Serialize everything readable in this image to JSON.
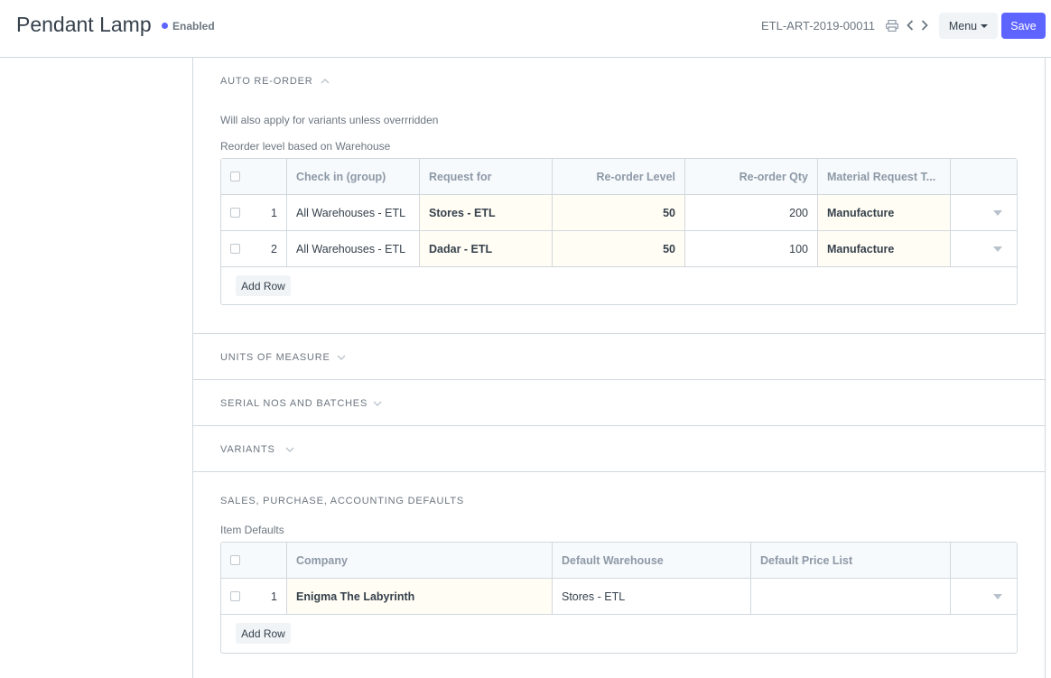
{
  "header": {
    "title": "Pendant Lamp",
    "status": "Enabled",
    "status_color": "#5e64ff",
    "doc_id": "ETL-ART-2019-00011",
    "menu_label": "Menu",
    "save_label": "Save",
    "save_color": "#5e64ff",
    "icons": [
      "printer-icon",
      "chevron-left-icon",
      "chevron-right-icon"
    ]
  },
  "auto_reorder": {
    "section_title": "AUTO RE-ORDER",
    "expanded": true,
    "note": "Will also apply for variants unless overrridden",
    "table_label": "Reorder level based on Warehouse",
    "columns": [
      "Check in (group)",
      "Request for",
      "Re-order Level",
      "Re-order Qty",
      "Material Request T..."
    ],
    "rows": [
      {
        "idx": "1",
        "check_in": "All Warehouses - ETL",
        "request_for": "Stores - ETL",
        "level": "50",
        "qty": "200",
        "type": "Manufacture"
      },
      {
        "idx": "2",
        "check_in": "All Warehouses - ETL",
        "request_for": "Dadar - ETL",
        "level": "50",
        "qty": "100",
        "type": "Manufacture"
      }
    ],
    "add_row_label": "Add Row"
  },
  "collapsed_sections": [
    {
      "title": "UNITS OF MEASURE"
    },
    {
      "title": "SERIAL NOS AND BATCHES"
    },
    {
      "title": "VARIANTS"
    }
  ],
  "defaults": {
    "section_title": "SALES, PURCHASE, ACCOUNTING DEFAULTS",
    "table_label": "Item Defaults",
    "columns": [
      "Company",
      "Default Warehouse",
      "Default Price List"
    ],
    "rows": [
      {
        "idx": "1",
        "company": "Enigma The Labyrinth",
        "warehouse": "Stores - ETL",
        "price_list": ""
      }
    ],
    "add_row_label": "Add Row"
  }
}
